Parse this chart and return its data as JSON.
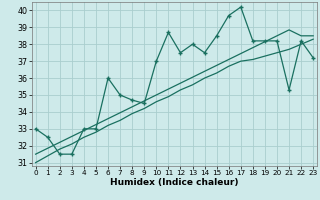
{
  "xlabel": "Humidex (Indice chaleur)",
  "background_color": "#ceeaea",
  "grid_color": "#aacece",
  "line_color": "#1a7060",
  "x_data": [
    0,
    1,
    2,
    3,
    4,
    5,
    6,
    7,
    8,
    9,
    10,
    11,
    12,
    13,
    14,
    15,
    16,
    17,
    18,
    19,
    20,
    21,
    22,
    23
  ],
  "y_main": [
    33.0,
    32.5,
    31.5,
    31.5,
    33.0,
    33.0,
    36.0,
    35.0,
    34.7,
    34.5,
    37.0,
    38.7,
    37.5,
    38.0,
    37.5,
    38.5,
    39.7,
    40.2,
    38.2,
    38.2,
    38.2,
    35.3,
    38.2,
    37.2
  ],
  "y_reg1": [
    31.5,
    31.85,
    32.2,
    32.55,
    32.9,
    33.25,
    33.6,
    33.95,
    34.3,
    34.65,
    35.0,
    35.35,
    35.7,
    36.05,
    36.4,
    36.75,
    37.1,
    37.45,
    37.8,
    38.15,
    38.5,
    38.85,
    38.5,
    38.5
  ],
  "y_reg2": [
    31.0,
    31.4,
    31.8,
    32.1,
    32.5,
    32.8,
    33.2,
    33.5,
    33.9,
    34.2,
    34.6,
    34.9,
    35.3,
    35.6,
    36.0,
    36.3,
    36.7,
    37.0,
    37.1,
    37.3,
    37.5,
    37.7,
    38.0,
    38.3
  ],
  "ylim": [
    30.8,
    40.5
  ],
  "xlim": [
    -0.3,
    23.3
  ],
  "yticks": [
    31,
    32,
    33,
    34,
    35,
    36,
    37,
    38,
    39,
    40
  ],
  "xticks": [
    0,
    1,
    2,
    3,
    4,
    5,
    6,
    7,
    8,
    9,
    10,
    11,
    12,
    13,
    14,
    15,
    16,
    17,
    18,
    19,
    20,
    21,
    22,
    23
  ],
  "markersize": 3.5,
  "linewidth": 0.9
}
